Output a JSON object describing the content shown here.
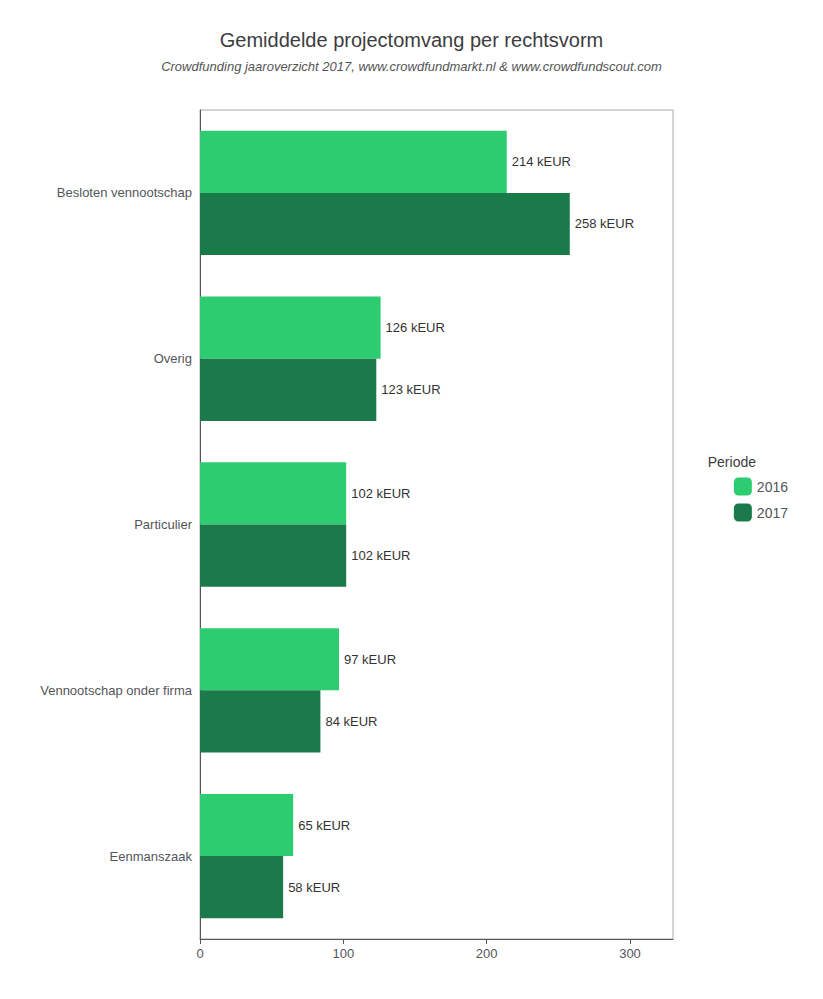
{
  "chart_data": {
    "type": "bar",
    "orientation": "horizontal",
    "title": "Gemiddelde projectomvang per rechtsvorm",
    "subtitle": "Crowdfunding jaaroverzicht 2017, www.crowdfundmarkt.nl & www.crowdfundscout.com",
    "legend_title": "Periode",
    "legend": "right",
    "categories": [
      "Besloten vennootschap",
      "Overig",
      "Particulier",
      "Vennootschap onder firma",
      "Eenmanszaak"
    ],
    "series": [
      {
        "name": "2016",
        "color": "#2ecc71",
        "values": [
          214,
          126,
          102,
          97,
          65
        ],
        "value_labels": [
          "214 kEUR",
          "126 kEUR",
          "102 kEUR",
          "97 kEUR",
          "65 kEUR"
        ]
      },
      {
        "name": "2017",
        "color": "#1a7a4a",
        "values": [
          258,
          123,
          102,
          84,
          58
        ],
        "value_labels": [
          "258 kEUR",
          "123 kEUR",
          "102 kEUR",
          "84 kEUR",
          "58 kEUR"
        ]
      }
    ],
    "xlim": [
      0,
      330
    ],
    "xticks": [
      0,
      100,
      200,
      300
    ],
    "grid": false,
    "data_labels": true
  }
}
